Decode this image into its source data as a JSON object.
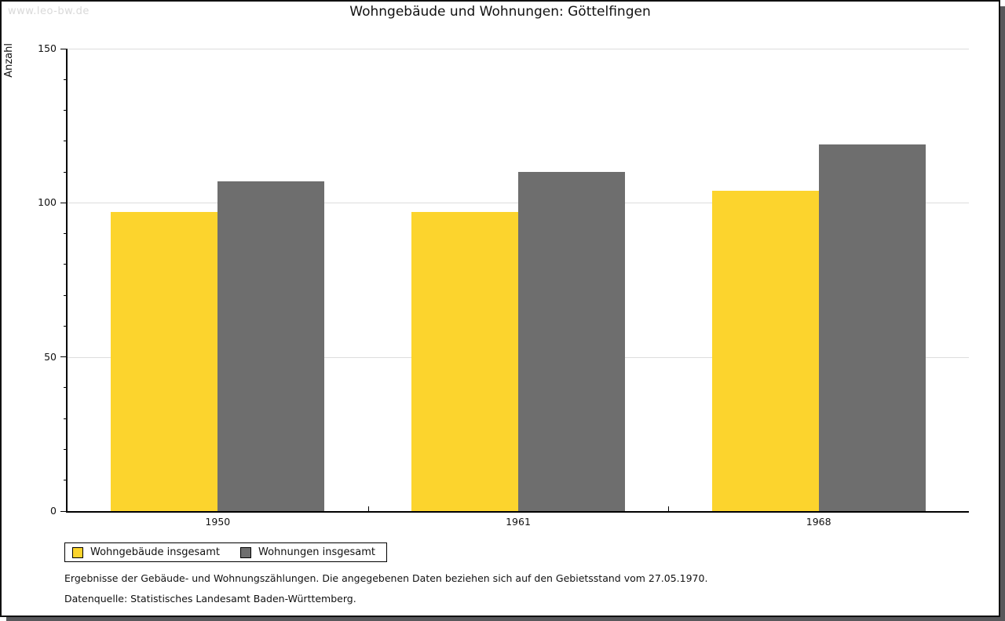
{
  "watermark": "www.leo-bw.de",
  "title": "Wohngebäude und Wohnungen: Göttelfingen",
  "chart_data": {
    "type": "bar",
    "title": "Wohngebäude und Wohnungen: Göttelfingen",
    "xlabel": "",
    "ylabel": "Anzahl",
    "ylim": [
      0,
      150
    ],
    "ytick_major": [
      0,
      50,
      100,
      150
    ],
    "ytick_minor_step": 10,
    "grid_values": [
      50,
      100,
      150
    ],
    "grid": true,
    "legend_position": "bottom-left",
    "categories": [
      "1950",
      "1961",
      "1968"
    ],
    "series": [
      {
        "name": "Wohngebäude insgesamt",
        "color": "#FCD42D",
        "values": [
          97,
          97,
          104
        ]
      },
      {
        "name": "Wohnungen insgesamt",
        "color": "#6E6E6E",
        "values": [
          107,
          110,
          119
        ]
      }
    ]
  },
  "footnotes": [
    "Ergebnisse der Gebäude- und Wohnungszählungen. Die angegebenen Daten beziehen sich auf den Gebietsstand vom 27.05.1970.",
    "Datenquelle: Statistisches Landesamt Baden-Württemberg."
  ],
  "colors": {
    "bar_yellow": "#FCD42D",
    "bar_gray": "#6E6E6E",
    "gridline": "#DDDDDD",
    "axis": "#000000",
    "watermark_text": "#D9D9D9",
    "window_shadow": "#58585B",
    "background": "#FFFFFF",
    "text": "#000000"
  }
}
